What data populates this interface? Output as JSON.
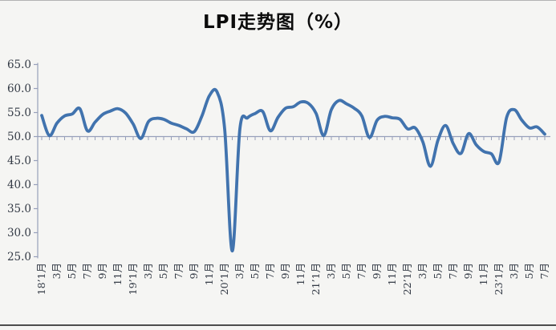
{
  "page": {
    "title": "LPI走势图（%）"
  },
  "chart_data": {
    "type": "line",
    "title": "LPI走势图（%）",
    "unit": "%",
    "ylim": [
      25,
      65
    ],
    "ytick_step": 5,
    "yticks": [
      65.0,
      60.0,
      55.0,
      50.0,
      45.0,
      40.0,
      35.0,
      30.0,
      25.0
    ],
    "x_axis_cross_value": 50,
    "grid": "none",
    "legend": "none",
    "x_label_rotation": -90,
    "line_color": "#4173ae",
    "axis_color": "#97a0ba",
    "text_color": "#333a45",
    "smoothed": true,
    "categories": [
      "18’1月",
      "",
      "3月",
      "",
      "5月",
      "",
      "7月",
      "",
      "9月",
      "",
      "11月",
      "",
      "19’1月",
      "",
      "3月",
      "",
      "5月",
      "",
      "7月",
      "",
      "9月",
      "",
      "11月",
      "",
      "20’1月",
      "",
      "3月",
      "",
      "5月",
      "",
      "7月",
      "",
      "9月",
      "",
      "11月",
      "",
      "21’1月",
      "",
      "3月",
      "",
      "5月",
      "",
      "7月",
      "",
      "9月",
      "",
      "11月",
      "",
      "22’1月",
      "",
      "3月",
      "",
      "5月",
      "",
      "7月",
      "",
      "9月",
      "",
      "11月",
      "",
      "23’1月",
      "",
      "3月",
      "",
      "5月",
      "",
      "7月"
    ],
    "values": [
      54.4,
      50.2,
      52.8,
      54.3,
      54.7,
      55.8,
      51.2,
      53.0,
      54.6,
      55.3,
      55.8,
      54.9,
      52.6,
      49.6,
      53.1,
      53.8,
      53.6,
      52.8,
      52.3,
      51.6,
      51.0,
      54.2,
      58.5,
      59.3,
      51.6,
      26.2,
      51.6,
      53.9,
      54.8,
      55.2,
      51.2,
      54.0,
      55.9,
      56.2,
      57.2,
      56.9,
      54.8,
      50.2,
      55.6,
      57.5,
      56.8,
      55.9,
      54.3,
      49.8,
      53.4,
      54.2,
      53.9,
      53.6,
      51.6,
      51.8,
      48.9,
      43.8,
      49.3,
      52.3,
      48.5,
      46.5,
      50.6,
      48.3,
      46.9,
      46.4,
      44.7,
      54.0,
      55.6,
      53.4,
      51.8,
      52.0,
      50.5
    ]
  }
}
